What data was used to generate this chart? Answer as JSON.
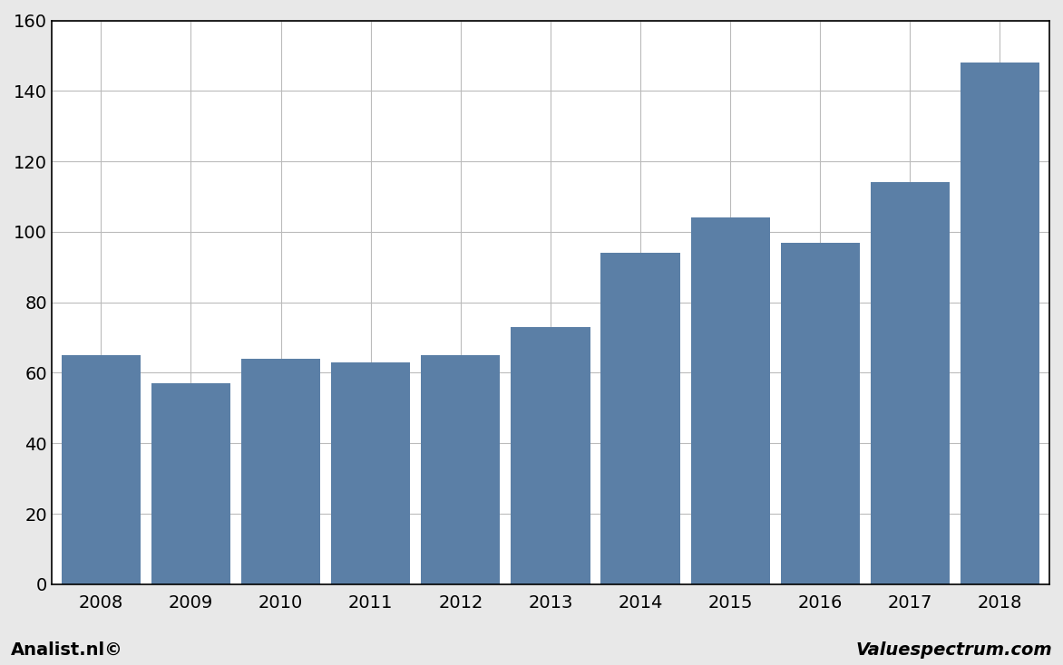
{
  "categories": [
    "2008",
    "2009",
    "2010",
    "2011",
    "2012",
    "2013",
    "2014",
    "2015",
    "2016",
    "2017",
    "2018"
  ],
  "values": [
    65,
    57,
    64,
    63,
    65,
    73,
    94,
    104,
    97,
    114,
    148
  ],
  "bar_color": "#5B7FA6",
  "ylim": [
    0,
    160
  ],
  "yticks": [
    0,
    20,
    40,
    60,
    80,
    100,
    120,
    140,
    160
  ],
  "background_color": "#FFFFFF",
  "plot_bg_color": "#FFFFFF",
  "outer_bg_color": "#E8E8E8",
  "grid_color": "#BBBBBB",
  "footer_left": "Analist.nl©",
  "footer_right": "Valuespectrum.com",
  "footer_fontsize": 14,
  "tick_fontsize": 14,
  "border_color": "#000000",
  "bar_width": 0.88
}
